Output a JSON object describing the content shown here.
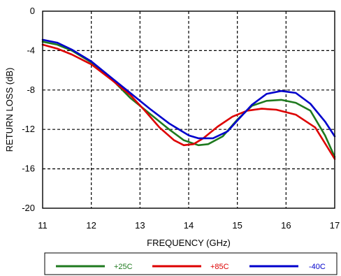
{
  "chart_data": {
    "type": "line",
    "xlabel": "FREQUENCY (GHz)",
    "ylabel": "RETURN LOSS (dB)",
    "xlim": [
      11,
      17
    ],
    "ylim": [
      -20,
      0
    ],
    "x_ticks": [
      "11",
      "12",
      "13",
      "14",
      "15",
      "16",
      "17"
    ],
    "y_ticks": [
      "0",
      "-4",
      "-8",
      "-12",
      "-16",
      "-20"
    ],
    "grid": "dashed",
    "legend_position": "bottom",
    "series": [
      {
        "name": "+25C",
        "color": "#1f7a1f",
        "points": [
          [
            11,
            -3.1
          ],
          [
            11.3,
            -3.4
          ],
          [
            11.6,
            -4.0
          ],
          [
            12.0,
            -5.2
          ],
          [
            12.4,
            -6.8
          ],
          [
            12.8,
            -8.8
          ],
          [
            13.2,
            -10.4
          ],
          [
            13.6,
            -12.0
          ],
          [
            13.9,
            -13.1
          ],
          [
            14.2,
            -13.6
          ],
          [
            14.4,
            -13.5
          ],
          [
            14.7,
            -12.7
          ],
          [
            15.0,
            -11.0
          ],
          [
            15.3,
            -9.6
          ],
          [
            15.6,
            -9.1
          ],
          [
            15.9,
            -9.0
          ],
          [
            16.2,
            -9.3
          ],
          [
            16.5,
            -10.1
          ],
          [
            16.8,
            -12.6
          ],
          [
            17.0,
            -14.8
          ]
        ]
      },
      {
        "name": "+85C",
        "color": "#dd0000",
        "points": [
          [
            11,
            -3.4
          ],
          [
            11.3,
            -3.8
          ],
          [
            11.6,
            -4.4
          ],
          [
            12.0,
            -5.4
          ],
          [
            12.4,
            -6.9
          ],
          [
            12.8,
            -8.5
          ],
          [
            13.1,
            -10.1
          ],
          [
            13.4,
            -11.8
          ],
          [
            13.7,
            -13.1
          ],
          [
            13.9,
            -13.6
          ],
          [
            14.1,
            -13.5
          ],
          [
            14.3,
            -12.9
          ],
          [
            14.6,
            -11.7
          ],
          [
            14.9,
            -10.7
          ],
          [
            15.2,
            -10.1
          ],
          [
            15.5,
            -9.9
          ],
          [
            15.8,
            -10.0
          ],
          [
            16.2,
            -10.5
          ],
          [
            16.6,
            -11.8
          ],
          [
            17.0,
            -15.0
          ]
        ]
      },
      {
        "name": "-40C",
        "color": "#0000cc",
        "points": [
          [
            11,
            -2.9
          ],
          [
            11.3,
            -3.2
          ],
          [
            11.6,
            -3.9
          ],
          [
            12.0,
            -5.1
          ],
          [
            12.4,
            -6.7
          ],
          [
            12.8,
            -8.3
          ],
          [
            13.2,
            -9.9
          ],
          [
            13.6,
            -11.4
          ],
          [
            14.0,
            -12.6
          ],
          [
            14.2,
            -12.9
          ],
          [
            14.5,
            -12.9
          ],
          [
            14.8,
            -12.2
          ],
          [
            15.0,
            -11.1
          ],
          [
            15.3,
            -9.5
          ],
          [
            15.6,
            -8.4
          ],
          [
            15.9,
            -8.1
          ],
          [
            16.2,
            -8.3
          ],
          [
            16.5,
            -9.4
          ],
          [
            16.8,
            -11.2
          ],
          [
            17.0,
            -12.7
          ]
        ]
      }
    ]
  }
}
